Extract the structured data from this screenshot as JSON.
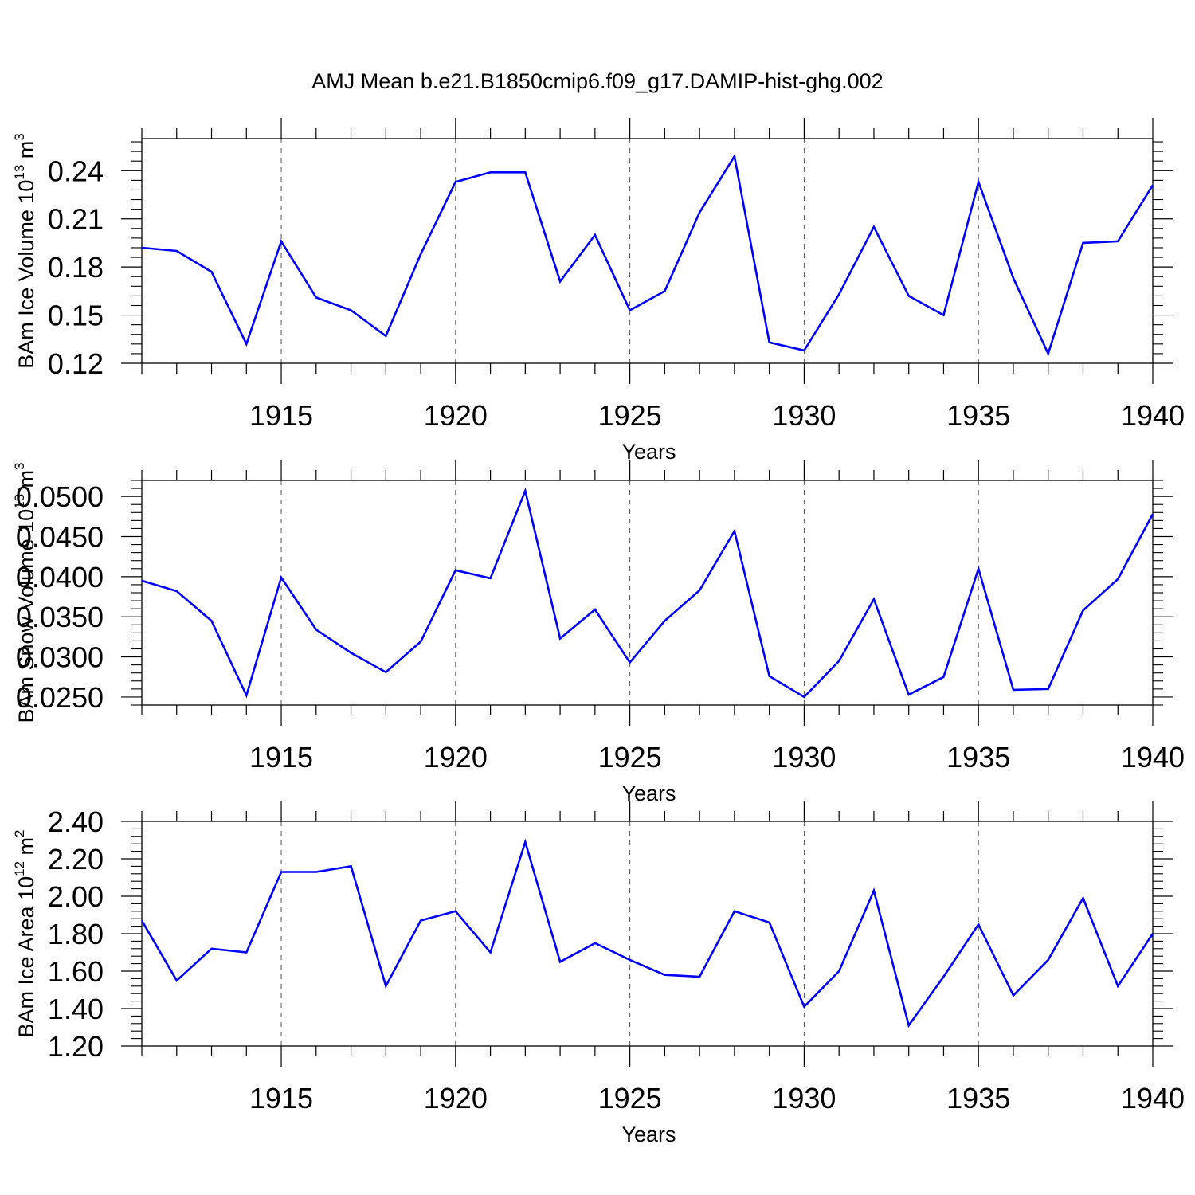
{
  "title": "AMJ Mean b.e21.B1850cmip6.f09_g17.DAMIP-hist-ghg.002",
  "colors": {
    "line": "#0000ff",
    "axis": "#000000",
    "grid": "#555555"
  },
  "chart_data": [
    {
      "type": "line",
      "ylabel_main": "BAm Ice Volume 10",
      "ylabel_exp": "13",
      "ylabel_unit": " m",
      "ylabel_unit_exp": "3",
      "xlabel": "Years",
      "xlim": [
        1911,
        1940
      ],
      "ylim": [
        0.12,
        0.26
      ],
      "yticks": [
        0.12,
        0.15,
        0.18,
        0.21,
        0.24
      ],
      "ytick_labels": [
        "0.12",
        "0.15",
        "0.18",
        "0.21",
        "0.24"
      ],
      "xticks": [
        1915,
        1920,
        1925,
        1930,
        1935,
        1940
      ],
      "xtick_labels": [
        "1915",
        "1920",
        "1925",
        "1930",
        "1935",
        "1940"
      ],
      "grid": "vertical dashed at labeled years",
      "x": [
        1911,
        1912,
        1913,
        1914,
        1915,
        1916,
        1917,
        1918,
        1919,
        1920,
        1921,
        1922,
        1923,
        1924,
        1925,
        1926,
        1927,
        1928,
        1929,
        1930,
        1931,
        1932,
        1933,
        1934,
        1935,
        1936,
        1937,
        1938,
        1939,
        1940
      ],
      "values": [
        0.192,
        0.19,
        0.177,
        0.132,
        0.196,
        0.161,
        0.153,
        0.137,
        0.188,
        0.233,
        0.239,
        0.239,
        0.171,
        0.2,
        0.153,
        0.165,
        0.214,
        0.249,
        0.133,
        0.128,
        0.163,
        0.205,
        0.162,
        0.15,
        0.233,
        0.173,
        0.126,
        0.195,
        0.196,
        0.231
      ]
    },
    {
      "type": "line",
      "ylabel_main": "BAm Snow Volume 10",
      "ylabel_exp": "13",
      "ylabel_unit": " m",
      "ylabel_unit_exp": "3",
      "xlabel": "Years",
      "xlim": [
        1911,
        1940
      ],
      "ylim": [
        0.024,
        0.052
      ],
      "yticks": [
        0.025,
        0.03,
        0.035,
        0.04,
        0.045,
        0.05
      ],
      "ytick_labels": [
        "0.0250",
        "0.0300",
        "0.0350",
        "0.0400",
        "0.0450",
        "0.0500"
      ],
      "xticks": [
        1915,
        1920,
        1925,
        1930,
        1935,
        1940
      ],
      "xtick_labels": [
        "1915",
        "1920",
        "1925",
        "1930",
        "1935",
        "1940"
      ],
      "grid": "vertical dashed at labeled years",
      "x": [
        1911,
        1912,
        1913,
        1914,
        1915,
        1916,
        1917,
        1918,
        1919,
        1920,
        1921,
        1922,
        1923,
        1924,
        1925,
        1926,
        1927,
        1928,
        1929,
        1930,
        1931,
        1932,
        1933,
        1934,
        1935,
        1936,
        1937,
        1938,
        1939,
        1940
      ],
      "values": [
        0.0395,
        0.0382,
        0.0345,
        0.0252,
        0.0399,
        0.0334,
        0.0305,
        0.0281,
        0.0319,
        0.0408,
        0.0398,
        0.0507,
        0.0323,
        0.0359,
        0.0293,
        0.0345,
        0.0383,
        0.0457,
        0.0276,
        0.025,
        0.0295,
        0.0372,
        0.0253,
        0.0275,
        0.041,
        0.0259,
        0.026,
        0.0358,
        0.0397,
        0.0478
      ]
    },
    {
      "type": "line",
      "ylabel_main": "BAm Ice Area 10",
      "ylabel_exp": "12",
      "ylabel_unit": " m",
      "ylabel_unit_exp": "2",
      "xlabel": "Years",
      "xlim": [
        1911,
        1940
      ],
      "ylim": [
        1.2,
        2.4
      ],
      "yticks": [
        1.2,
        1.4,
        1.6,
        1.8,
        2.0,
        2.2,
        2.4
      ],
      "ytick_labels": [
        "1.20",
        "1.40",
        "1.60",
        "1.80",
        "2.00",
        "2.20",
        "2.40"
      ],
      "xticks": [
        1915,
        1920,
        1925,
        1930,
        1935,
        1940
      ],
      "xtick_labels": [
        "1915",
        "1920",
        "1925",
        "1930",
        "1935",
        "1940"
      ],
      "grid": "vertical dashed at labeled years",
      "x": [
        1911,
        1912,
        1913,
        1914,
        1915,
        1916,
        1917,
        1918,
        1919,
        1920,
        1921,
        1922,
        1923,
        1924,
        1925,
        1926,
        1927,
        1928,
        1929,
        1930,
        1931,
        1932,
        1933,
        1934,
        1935,
        1936,
        1937,
        1938,
        1939,
        1940
      ],
      "values": [
        1.87,
        1.55,
        1.72,
        1.7,
        2.13,
        2.13,
        2.16,
        1.52,
        1.87,
        1.92,
        1.7,
        2.29,
        1.65,
        1.75,
        1.66,
        1.58,
        1.57,
        1.92,
        1.86,
        1.41,
        1.6,
        2.03,
        1.31,
        1.57,
        1.85,
        1.47,
        1.66,
        1.99,
        1.52,
        1.8
      ]
    }
  ]
}
